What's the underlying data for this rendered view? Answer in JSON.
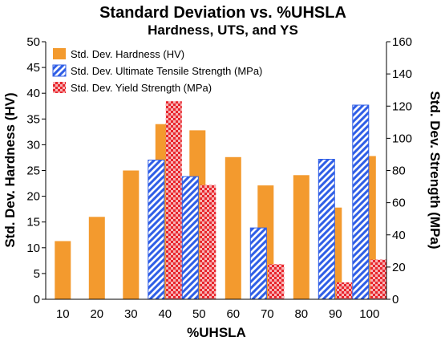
{
  "chart_data": {
    "type": "bar",
    "title": "Standard Deviation vs. %UHSLA",
    "subtitle": "Hardness, UTS, and YS",
    "xlabel": "%UHSLA",
    "ylabel_left": "Std. Dev. Hardness (HV)",
    "ylabel_right": "Std. Dev. Strength (MPa)",
    "categories": [
      "10",
      "20",
      "30",
      "40",
      "50",
      "60",
      "70",
      "80",
      "90",
      "100"
    ],
    "ylim_left": [
      0,
      50
    ],
    "ylim_right": [
      0,
      160
    ],
    "yticks_left": [
      "0",
      "5",
      "10",
      "15",
      "20",
      "25",
      "30",
      "35",
      "40",
      "45",
      "50"
    ],
    "yticks_right": [
      "0",
      "20",
      "40",
      "60",
      "80",
      "100",
      "120",
      "140",
      "160"
    ],
    "grid": false,
    "legend_position": "top-left",
    "series": [
      {
        "name": "Std. Dev. Hardness (HV)",
        "axis": "left",
        "color": "#f39a2e",
        "pattern": "solid",
        "values": [
          11.3,
          16.0,
          25.0,
          34.0,
          32.8,
          27.6,
          22.1,
          24.1,
          17.8,
          27.8
        ]
      },
      {
        "name": "Std. Dev. Ultimate Tensile Strength (MPa)",
        "axis": "right",
        "color": "#2f5ee6",
        "pattern": "diagonal-stripes",
        "values": [
          null,
          null,
          null,
          86.5,
          76.2,
          null,
          44.3,
          null,
          87.0,
          120.6
        ]
      },
      {
        "name": "Std. Dev. Yield Strength (MPa)",
        "axis": "right",
        "color": "#e8262d",
        "pattern": "checker",
        "values": [
          null,
          null,
          null,
          123.0,
          71.0,
          null,
          21.8,
          null,
          10.5,
          24.6
        ]
      }
    ]
  }
}
